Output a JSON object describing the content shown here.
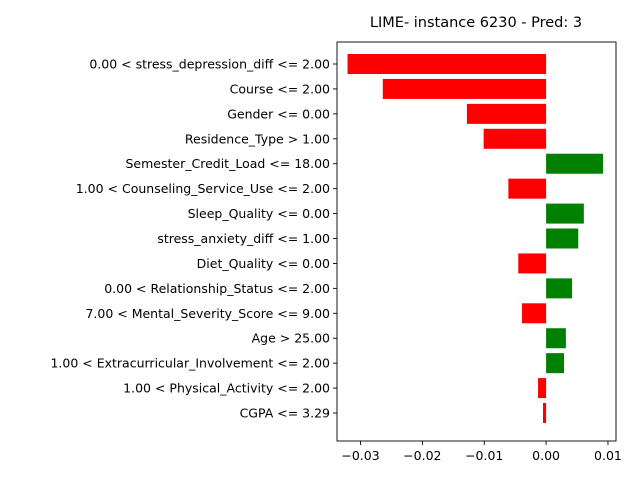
{
  "chart_data": {
    "type": "bar",
    "orientation": "horizontal",
    "title": "LIME- instance 6230 - Pred: 3",
    "xlabel": "",
    "ylabel": "",
    "xlim": [
      -0.0338,
      0.0113
    ],
    "xticks": [
      {
        "value": -0.03,
        "label": "−0.03"
      },
      {
        "value": -0.02,
        "label": "−0.02"
      },
      {
        "value": -0.01,
        "label": "−0.01"
      },
      {
        "value": 0.0,
        "label": "0.00"
      },
      {
        "value": 0.01,
        "label": "0.01"
      }
    ],
    "grid": false,
    "colors": {
      "negative": "#ff0000",
      "positive": "#008000"
    },
    "bars": [
      {
        "label": "0.00 < stress_depression_diff <= 2.00",
        "value": -0.0321
      },
      {
        "label": "Course <= 2.00",
        "value": -0.0264
      },
      {
        "label": "Gender <= 0.00",
        "value": -0.0128
      },
      {
        "label": "Residence_Type > 1.00",
        "value": -0.0101
      },
      {
        "label": "Semester_Credit_Load <= 18.00",
        "value": 0.0092
      },
      {
        "label": "1.00 < Counseling_Service_Use <= 2.00",
        "value": -0.0061
      },
      {
        "label": "Sleep_Quality <= 0.00",
        "value": 0.0061
      },
      {
        "label": "stress_anxiety_diff <= 1.00",
        "value": 0.0052
      },
      {
        "label": "Diet_Quality <= 0.00",
        "value": -0.0045
      },
      {
        "label": "0.00 < Relationship_Status <= 2.00",
        "value": 0.0042
      },
      {
        "label": "7.00 < Mental_Severity_Score <= 9.00",
        "value": -0.0039
      },
      {
        "label": "Age > 25.00",
        "value": 0.0032
      },
      {
        "label": "1.00 < Extracurricular_Involvement <= 2.00",
        "value": 0.0029
      },
      {
        "label": "1.00 < Physical_Activity <= 2.00",
        "value": -0.0013
      },
      {
        "label": "CGPA <= 3.29",
        "value": -0.0005
      }
    ]
  }
}
